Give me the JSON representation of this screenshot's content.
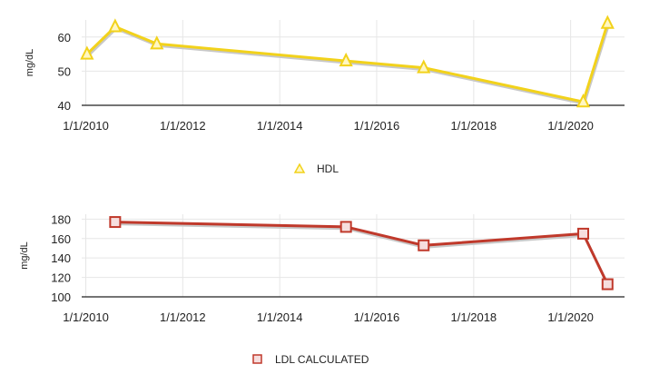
{
  "chart_data": [
    {
      "type": "line",
      "title": "",
      "xlabel": "",
      "ylabel": "mg/dL",
      "ylim": [
        40,
        65
      ],
      "xlim": [
        "2009-12-01",
        "2021-02-10"
      ],
      "yticks": [
        40,
        50,
        60
      ],
      "xticks": [
        "2010-01-01",
        "2012-01-01",
        "2014-01-01",
        "2016-01-01",
        "2018-01-01",
        "2020-01-01"
      ],
      "xtick_labels": [
        "1/1/2010",
        "1/1/2012",
        "1/1/2014",
        "1/1/2016",
        "1/1/2018",
        "1/1/2020"
      ],
      "grid": true,
      "legend": "bottom-center",
      "marker": "triangle",
      "color": "#f2d21b",
      "series": [
        {
          "name": "HDL",
          "x": [
            "2010-01-10",
            "2010-08-10",
            "2011-06-20",
            "2015-05-15",
            "2016-12-20",
            "2020-04-05",
            "2020-10-05"
          ],
          "values": [
            55,
            63,
            58,
            53,
            51,
            41,
            64
          ]
        }
      ]
    },
    {
      "type": "line",
      "title": "",
      "xlabel": "",
      "ylabel": "mg/dL",
      "ylim": [
        100,
        185
      ],
      "xlim": [
        "2009-12-01",
        "2021-02-10"
      ],
      "yticks": [
        100,
        120,
        140,
        160,
        180
      ],
      "xticks": [
        "2010-01-01",
        "2012-01-01",
        "2014-01-01",
        "2016-01-01",
        "2018-01-01",
        "2020-01-01"
      ],
      "xtick_labels": [
        "1/1/2010",
        "1/1/2012",
        "1/1/2014",
        "1/1/2016",
        "1/1/2018",
        "1/1/2020"
      ],
      "grid": true,
      "legend": "bottom-center",
      "marker": "square",
      "color": "#c0392b",
      "series": [
        {
          "name": "LDL CALCULATED",
          "x": [
            "2010-08-10",
            "2015-05-15",
            "2016-12-20",
            "2020-04-05",
            "2020-10-05"
          ],
          "values": [
            177,
            172,
            153,
            165,
            113
          ]
        }
      ]
    }
  ]
}
